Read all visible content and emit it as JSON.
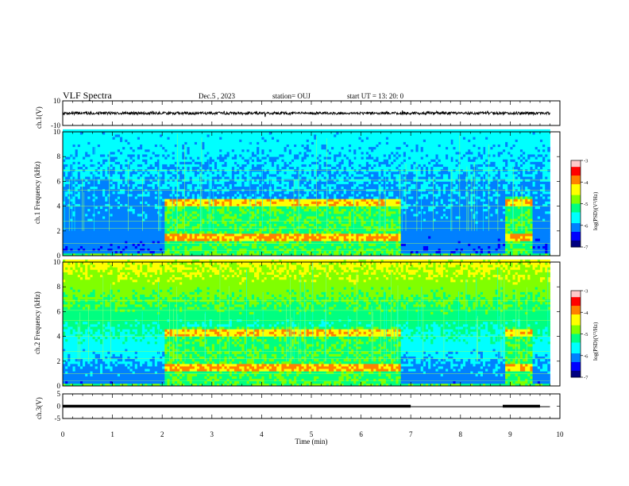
{
  "header": {
    "title": "VLF Spectra",
    "date": "Dec.5 , 2023",
    "station": "station= OUJ",
    "start": "start UT = 13: 20: 0"
  },
  "chart_data": {
    "type": "heatmap",
    "xlabel": "Time (min)",
    "xlim": [
      0,
      10
    ],
    "xticks": [
      "0",
      "1",
      "2",
      "3",
      "4",
      "5",
      "6",
      "7",
      "8",
      "9",
      "10"
    ],
    "panels": [
      {
        "name": "ch1-waveform",
        "type": "line",
        "ylabel": "ch.1(V)",
        "ylim": [
          -10,
          10
        ],
        "yticks": [
          "10",
          "-10"
        ],
        "baseline": 0.0,
        "data_end_min": 9.8
      },
      {
        "name": "ch1-spectrogram",
        "type": "heatmap",
        "ylabel": "ch.1 Frequency (kHz)",
        "ylim": [
          0,
          10
        ],
        "yticks": [
          "0",
          "2",
          "4",
          "6",
          "8",
          "10"
        ],
        "data_end_min": 9.8,
        "bands": [
          {
            "t0": 2.05,
            "t1": 6.8,
            "f0": 0.2,
            "f1": 4.6
          },
          {
            "t0": 8.9,
            "t1": 9.45,
            "f0": 0.2,
            "f1": 4.8
          }
        ],
        "colorbar": {
          "label": "log(PSD)(V²/Hz)",
          "range": [
            -7,
            -3
          ],
          "ticks": [
            "-3",
            "-4",
            "-5",
            "-6",
            "-7"
          ]
        }
      },
      {
        "name": "ch2-spectrogram",
        "type": "heatmap",
        "ylabel": "ch.2 Frequency (kHz)",
        "ylim": [
          0,
          10
        ],
        "yticks": [
          "0",
          "2",
          "4",
          "6",
          "8",
          "10"
        ],
        "data_end_min": 9.8,
        "bands": [
          {
            "t0": 2.05,
            "t1": 6.8,
            "f0": 0.2,
            "f1": 4.9
          },
          {
            "t0": 8.9,
            "t1": 9.45,
            "f0": 0.2,
            "f1": 4.8
          }
        ],
        "colorbar": {
          "label": "log(PSD)(V²/Hz)",
          "range": [
            -7,
            -3
          ],
          "ticks": [
            "-3",
            "-4",
            "-5",
            "-6",
            "-7"
          ]
        }
      },
      {
        "name": "ch3-waveform",
        "type": "line",
        "ylabel": "ch.3(V)",
        "ylim": [
          -5,
          5
        ],
        "yticks": [
          "5",
          "0",
          "-5"
        ],
        "segments": [
          {
            "t0": 0.0,
            "t1": 7.0,
            "v": 0.0
          },
          {
            "t0": 7.0,
            "t1": 8.85,
            "v": -0.2
          },
          {
            "t0": 8.85,
            "t1": 9.6,
            "v": 0.0
          },
          {
            "t0": 9.6,
            "t1": 9.8,
            "v": -0.2
          }
        ]
      }
    ],
    "colormap": [
      "#000080",
      "#0000ff",
      "#0080ff",
      "#00ffff",
      "#00ff80",
      "#80ff00",
      "#ffff00",
      "#ff8000",
      "#ff0000",
      "#ffc8c8"
    ]
  }
}
